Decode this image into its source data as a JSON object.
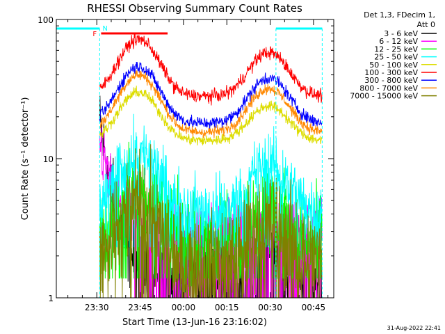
{
  "chart_data": {
    "type": "line",
    "title": "RHESSI Observing Summary Count Rates",
    "xlabel": "Start Time (13-Jun-16 23:16:02)",
    "ylabel": "Count Rate (s⁻¹ detector⁻¹)",
    "yscale": "log",
    "ylim": [
      1,
      100
    ],
    "y_ticks": [
      {
        "v": 1,
        "label": "1"
      },
      {
        "v": 10,
        "label": "10"
      },
      {
        "v": 100,
        "label": "100"
      }
    ],
    "xlim_minutes": [
      0,
      96
    ],
    "x_ticks": [
      {
        "m": 14,
        "label": "23:30"
      },
      {
        "m": 29,
        "label": "23:45"
      },
      {
        "m": 44,
        "label": "00:00"
      },
      {
        "m": 59,
        "label": "00:15"
      },
      {
        "m": 74,
        "label": "00:30"
      },
      {
        "m": 89,
        "label": "00:45"
      }
    ],
    "legend_header": [
      "Det 1,3, FDecim 1,",
      "Att 0"
    ],
    "legend_position": "right",
    "footer": "31-Aug-2022 22:41",
    "flags": {
      "night_label": "N",
      "night_intervals": [
        [
          0,
          15
        ],
        [
          76,
          92
        ]
      ],
      "flare_label": "F",
      "flare_interval": [
        15.5,
        38.5
      ]
    },
    "series": [
      {
        "name": "3 - 6 keV",
        "color": "#000000",
        "style": "blip",
        "start": 15,
        "end": 92,
        "decay_from": 18,
        "decay_to": 2.4,
        "tail": 1.5,
        "bump2": 2.8,
        "noise": 0.25
      },
      {
        "name": "6 - 12 keV",
        "color": "#ff00ff",
        "style": "blip",
        "start": 15,
        "end": 92,
        "decay_from": 14,
        "decay_to": 4.0,
        "tail": 3.2,
        "bump2": 3.6,
        "noise": 0.22
      },
      {
        "name": "12 - 25 keV",
        "color": "#00ff00",
        "style": "noisy",
        "start": 15,
        "end": 92,
        "min": 2.5,
        "peak1": 6.0,
        "peak2": 4.5,
        "noise": 0.3
      },
      {
        "name": "25 - 50 keV",
        "color": "#00ffff",
        "style": "noisy",
        "start": 15,
        "end": 92,
        "min": 4.2,
        "peak1": 11.0,
        "peak2": 9.0,
        "noise": 0.22
      },
      {
        "name": "50 - 100 keV",
        "color": "#dddd00",
        "style": "orbit",
        "start": 15,
        "end": 92,
        "min": 13.5,
        "peak1": 30.0,
        "peak2": 24.0,
        "noise": 0.06
      },
      {
        "name": "100 - 300 keV",
        "color": "#ff0000",
        "style": "orbit",
        "start": 15,
        "end": 92,
        "min": 28.0,
        "peak1": 72.0,
        "peak2": 58.0,
        "noise": 0.07
      },
      {
        "name": "300 - 800 keV",
        "color": "#0000ff",
        "style": "orbit",
        "start": 15,
        "end": 92,
        "min": 18.0,
        "peak1": 46.0,
        "peak2": 38.0,
        "noise": 0.07
      },
      {
        "name": "800 - 7000 keV",
        "color": "#ff8800",
        "style": "orbit",
        "start": 15,
        "end": 92,
        "min": 15.5,
        "peak1": 40.0,
        "peak2": 32.0,
        "noise": 0.06
      },
      {
        "name": "7000 - 15000 keV",
        "color": "#808000",
        "style": "noisy",
        "start": 15,
        "end": 92,
        "min": 1.8,
        "peak1": 4.5,
        "peak2": 3.5,
        "noise": 0.35
      }
    ]
  }
}
